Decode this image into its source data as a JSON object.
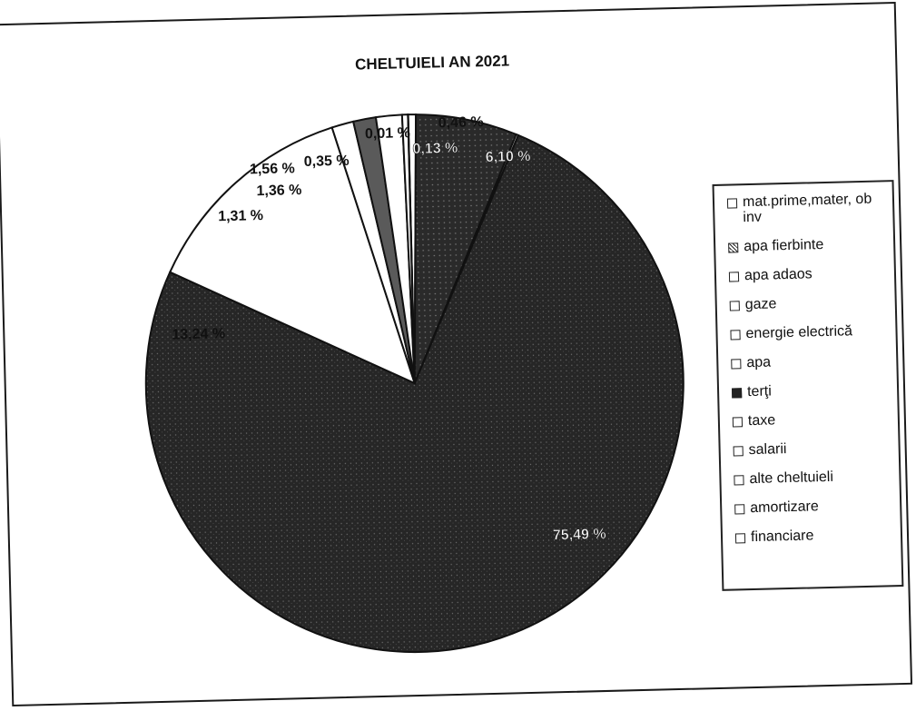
{
  "chart_data": {
    "type": "pie",
    "title": "CHELTUIELI AN 2021",
    "legend_position": "right",
    "slices": [
      {
        "label": "mat.prime,mater, ob inv",
        "value": 0.46,
        "display": "0,46 %",
        "color": "#ffffff",
        "swatch": "plain"
      },
      {
        "label": "apa fierbinte",
        "value": 6.1,
        "display": "6,10 %",
        "color": "#2b2b2b",
        "swatch": "hatch"
      },
      {
        "label": "apa adaos",
        "value": 0.13,
        "display": "0,13 %",
        "color": "#ffffff",
        "swatch": "plain"
      },
      {
        "label": "gaze",
        "value": 75.49,
        "display": "75,49 %",
        "color": "#242424",
        "swatch": "plain"
      },
      {
        "label": "energie electrică",
        "value": 13.24,
        "display": "13,24 %",
        "color": "#ffffff",
        "swatch": "plain"
      },
      {
        "label": "apa",
        "value": 1.31,
        "display": "1,31 %",
        "color": "#ffffff",
        "swatch": "plain"
      },
      {
        "label": "terţi",
        "value": 1.36,
        "display": "1,36 %",
        "color": "#5a5a5a",
        "swatch": "dark"
      },
      {
        "label": "taxe",
        "value": 1.56,
        "display": "1,56 %",
        "color": "#ffffff",
        "swatch": "plain"
      },
      {
        "label": "salarii",
        "value": 0.35,
        "display": "0,35 %",
        "color": "#ffffff",
        "swatch": "plain"
      },
      {
        "label": "alte cheltuieli",
        "value": 0.01,
        "display": "0,01 %",
        "color": "#ffffff",
        "swatch": "plain"
      },
      {
        "label": "amortizare",
        "value": 0.0,
        "display": "",
        "color": "#ffffff",
        "swatch": "plain"
      },
      {
        "label": "financiare",
        "value": 0.0,
        "display": "",
        "color": "#ffffff",
        "swatch": "plain"
      }
    ]
  }
}
